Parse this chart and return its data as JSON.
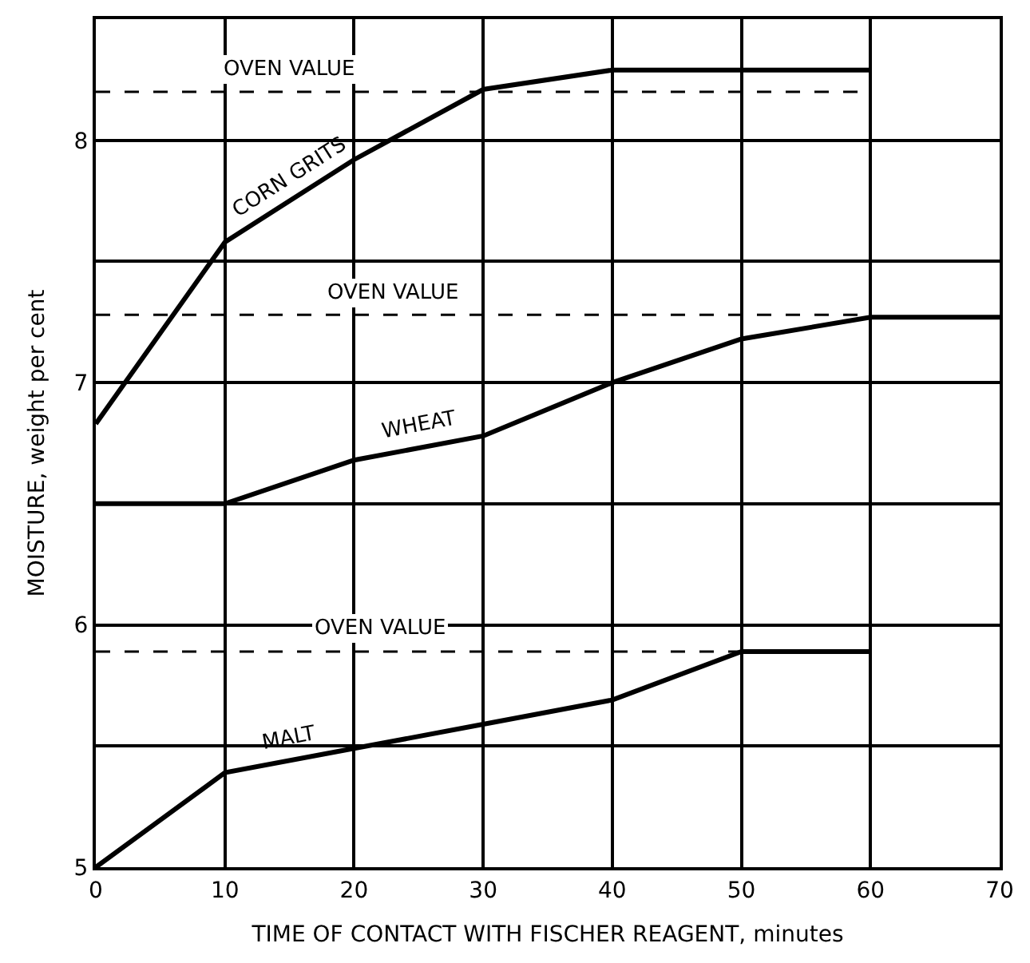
{
  "chart_data": {
    "type": "line",
    "xlabel": "TIME OF CONTACT WITH FISCHER REAGENT, minutes",
    "ylabel": "MOISTURE, weight per cent",
    "series": [
      {
        "name": "CORN GRITS",
        "color": "#000000",
        "x": [
          0,
          10,
          20,
          30,
          40,
          60
        ],
        "values": [
          6.83,
          7.58,
          7.92,
          8.21,
          8.29,
          8.29
        ]
      },
      {
        "name": "WHEAT",
        "color": "#000000",
        "x": [
          0,
          10,
          20,
          30,
          40,
          50,
          60,
          70
        ],
        "values": [
          6.5,
          6.5,
          6.68,
          6.78,
          7.0,
          7.18,
          7.27,
          7.27
        ]
      },
      {
        "name": "MALT",
        "color": "#000000",
        "x": [
          0,
          10,
          20,
          30,
          40,
          50,
          60
        ],
        "values": [
          5.0,
          5.39,
          5.49,
          5.59,
          5.69,
          5.89,
          5.89
        ]
      },
      {
        "color": "#000000",
        "line_style": "dashed",
        "x": [
          0,
          60
        ],
        "values": [
          8.2,
          8.2
        ]
      },
      {
        "color": "#000000",
        "line_style": "dashed",
        "x": [
          0,
          60
        ],
        "values": [
          7.28,
          7.28
        ]
      },
      {
        "color": "#000000",
        "line_style": "dashed",
        "x": [
          0,
          60
        ],
        "values": [
          5.89,
          5.89
        ]
      }
    ],
    "annotations": [
      {
        "text": "OVEN VALUE",
        "x": 15,
        "y": 8.2
      },
      {
        "text": "OVEN VALUE",
        "x": 23,
        "y": 7.28
      },
      {
        "text": "OVEN VALUE",
        "x": 22,
        "y": 5.89
      }
    ],
    "xlim": [
      0,
      70
    ],
    "xticks": [
      0,
      10,
      20,
      30,
      40,
      50,
      60,
      70
    ],
    "ylim": [
      5,
      8.5
    ],
    "yticks": [
      5,
      {
        "value": 5.5,
        "label": null
      },
      6,
      {
        "value": 6.5,
        "label": null
      },
      7,
      {
        "value": 7.5,
        "label": null
      },
      8
    ],
    "grid": true,
    "legend": false,
    "marker": "none"
  }
}
